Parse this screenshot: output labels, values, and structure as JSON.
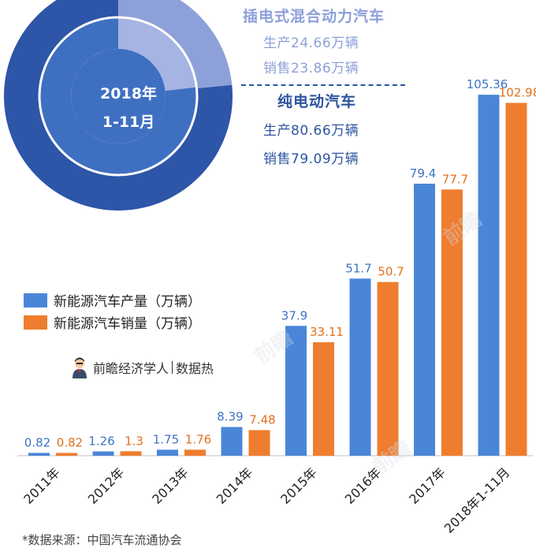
{
  "donut": {
    "center_line1": "2018年",
    "center_line2": "1-11月",
    "phev": {
      "title": "插电式混合动力汽车",
      "production": "生产24.66万辆",
      "sales": "销售23.86万辆",
      "production_value": 24.66,
      "sales_value": 23.86,
      "color": "#8ea0d9"
    },
    "bev": {
      "title": "纯电动汽车",
      "production": "生产80.66万辆",
      "sales": "销售79.09万辆",
      "production_value": 80.66,
      "sales_value": 79.09,
      "color": "#3f6fc1"
    }
  },
  "brand": {
    "name": "前瞻经济学人",
    "sub": "数据热"
  },
  "source": "*数据来源：中国汽车流通协会",
  "chart_data": {
    "type": "bar",
    "categories": [
      "2011年",
      "2012年",
      "2013年",
      "2014年",
      "2015年",
      "2016年",
      "2017年",
      "2018年1-11月"
    ],
    "series": [
      {
        "name": "新能源汽车产量（万辆）",
        "values": [
          0.82,
          1.26,
          1.75,
          8.39,
          37.9,
          51.7,
          79.4,
          105.36
        ],
        "labels": [
          "0.82",
          "1.26",
          "1.75",
          "8.39",
          "37.9",
          "51.7",
          "79.4",
          "105.36"
        ],
        "color": "#4a86d8"
      },
      {
        "name": "新能源汽车销量（万辆）",
        "values": [
          0.82,
          1.3,
          1.76,
          7.48,
          33.11,
          50.7,
          77.7,
          102.98
        ],
        "labels": [
          "0.82",
          "1.3",
          "1.76",
          "7.48",
          "33.11",
          "50.7",
          "77.7",
          "102.98"
        ],
        "color": "#ef7d2f"
      }
    ],
    "ylim": [
      0,
      110
    ],
    "grid": false,
    "legend": "middle-left"
  }
}
